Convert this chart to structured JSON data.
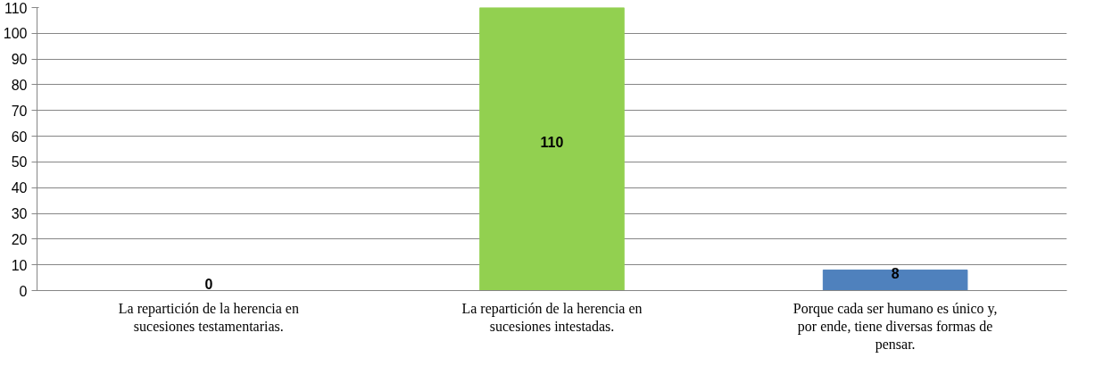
{
  "chart_data": {
    "type": "bar",
    "categories": [
      "La repartición de la herencia en sucesiones testamentarias.",
      "La repartición de la herencia en sucesiones intestadas.",
      "Porque cada ser humano es único y, por ende, tiene diversas formas de pensar."
    ],
    "values": [
      0,
      110,
      8
    ],
    "colors": [
      "#4f81bd",
      "#92d050",
      "#4f81bd"
    ],
    "ylim": [
      0,
      110
    ],
    "yticks": [
      0,
      10,
      20,
      30,
      40,
      50,
      60,
      70,
      80,
      90,
      100,
      110
    ],
    "grid": "y",
    "data_labels": true
  }
}
